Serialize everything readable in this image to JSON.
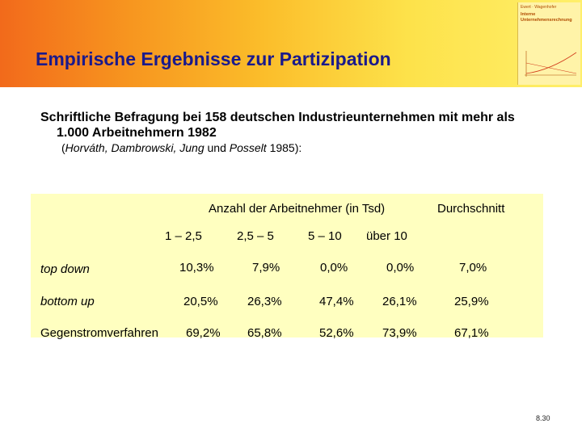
{
  "slide": {
    "title": "Empirische Ergebnisse zur Partizipation",
    "book_cover": {
      "author": "Ewert · Wagenhofer",
      "title_line1": "Interne",
      "title_line2": "Unternehmensrechnung"
    },
    "subtitle_line1": "Schriftliche Befragung bei 158 deutschen Industrieunternehmen mit mehr als",
    "subtitle_line2": "1.000 Arbeitnehmern 1982",
    "source_authors": "Horváth, Dambrowski, Jung",
    "source_and": "und",
    "source_last": "Posselt",
    "source_year": "1985):",
    "table": {
      "group_header": "Anzahl der Arbeitnehmer (in Tsd)",
      "average_header": "Durchschnitt",
      "columns": [
        "1 – 2,5",
        "2,5 – 5",
        "5 – 10",
        "über 10"
      ],
      "rows": [
        {
          "label": "top down",
          "values": [
            "10,3%",
            "7,9%",
            "0,0%",
            "0,0%"
          ],
          "average": "7,0%"
        },
        {
          "label": "bottom up",
          "values": [
            "20,5%",
            "26,3%",
            "47,4%",
            "26,1%"
          ],
          "average": "25,9%"
        },
        {
          "label": "Gegenstromverfahren",
          "values": [
            "69,2%",
            "65,8%",
            "52,6%",
            "73,9%"
          ],
          "average": "67,1%"
        }
      ]
    },
    "page_number": "8.30"
  }
}
